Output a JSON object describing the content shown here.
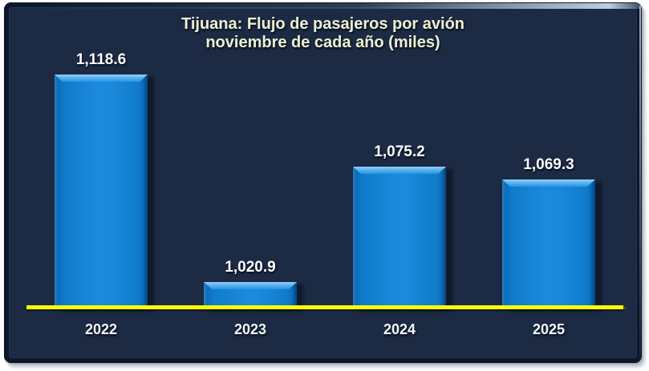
{
  "chart": {
    "title_line1": "Tijuana: Flujo de pasajeros por avión",
    "title_line2": "noviembre de cada año (miles)"
  },
  "chart_data": {
    "type": "bar",
    "title": "Tijuana: Flujo de pasajeros por avión noviembre de cada año (miles)",
    "categories": [
      "2022",
      "2023",
      "2024",
      "2025"
    ],
    "values": [
      1118.6,
      1020.9,
      1075.2,
      1069.3
    ],
    "value_labels": [
      "1,118.6",
      "1,020.9",
      "1,075.2",
      "1,069.3"
    ],
    "xlabel": "",
    "ylabel": "",
    "ylim": [
      1008.4,
      1152.5
    ],
    "grid": false,
    "legend": false,
    "colors": {
      "slide_background": "#1c2a44",
      "frame_border": "#0c1728",
      "bar_fill": "#1b89dc",
      "bar_bevel_highlight": "#93d2f8",
      "baseline_axis": "#ffff00",
      "title_text": "#eef0d2",
      "label_text": "#ffffff",
      "page_background": "#ffffff"
    }
  }
}
